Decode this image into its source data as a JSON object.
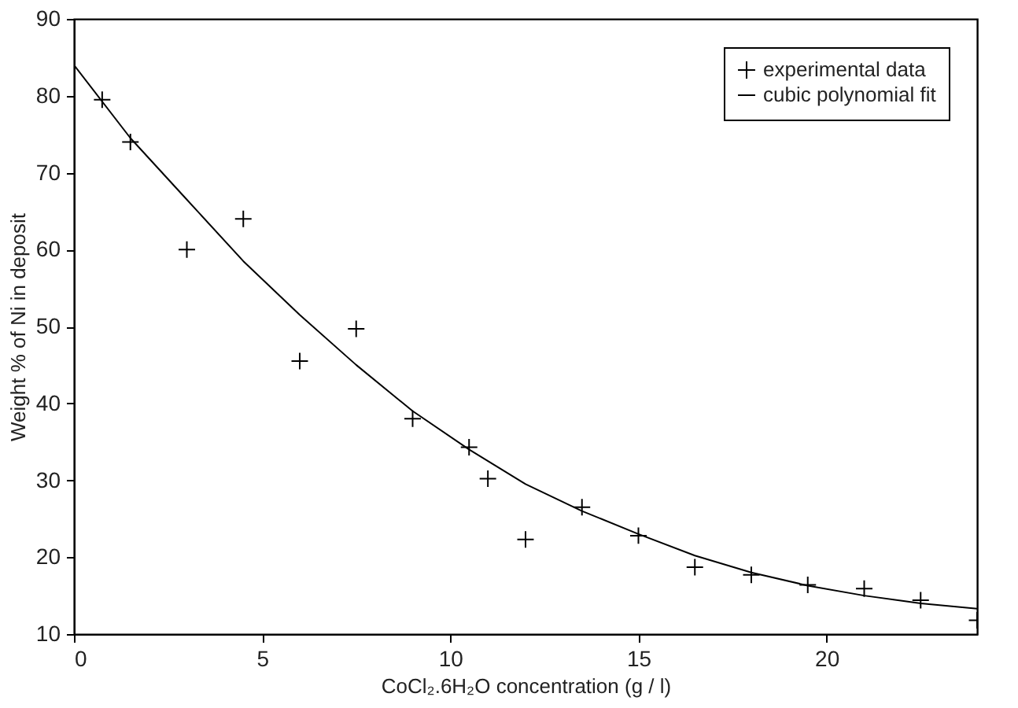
{
  "chart_data": {
    "type": "scatter",
    "xlabel": "CoCl₂.6H₂O concentration (g / l)",
    "ylabel": "Weight % of Ni in deposit",
    "xlim": [
      0,
      24
    ],
    "xticks": [
      0,
      5,
      10,
      15,
      20
    ],
    "ylim": [
      10,
      90
    ],
    "yticks": [
      10,
      20,
      30,
      40,
      50,
      60,
      70,
      80,
      90
    ],
    "grid": false,
    "legend": "top right",
    "series": [
      {
        "name": "experimental data",
        "marker": "cross",
        "color": "#000000",
        "x": [
          0.75,
          1.5,
          3,
          4.5,
          6,
          7.5,
          9,
          10.5,
          11,
          12,
          13.5,
          15,
          16.5,
          18,
          19.5,
          21,
          22.5,
          24
        ],
        "values": [
          79.5,
          74,
          60,
          64,
          45.5,
          49.7,
          38,
          34.3,
          30.2,
          22.3,
          26.5,
          22.8,
          18.7,
          17.7,
          16.4,
          15.9,
          14.4,
          11.8
        ]
      },
      {
        "name": "cubic polynomial fit",
        "type": "line",
        "marker": "none",
        "line_style": "solid",
        "color": "#000000",
        "x": [
          0,
          1.5,
          3,
          4.5,
          6,
          7.5,
          9,
          10.5,
          12,
          13.5,
          15,
          16.5,
          18,
          19.5,
          21,
          22.5,
          24
        ],
        "values": [
          84,
          74.5,
          66.5,
          58.5,
          51.5,
          45,
          39,
          34,
          29.5,
          26,
          23,
          20.2,
          18,
          16.3,
          15,
          14,
          13.3
        ]
      }
    ]
  }
}
